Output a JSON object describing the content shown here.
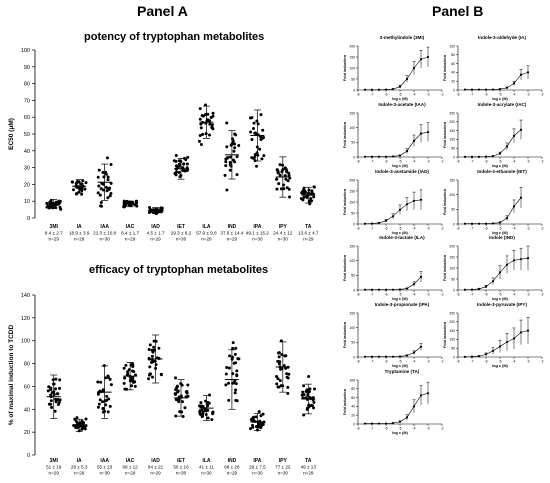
{
  "panels": {
    "a": "Panel A",
    "b": "Panel B"
  },
  "chart_data": [
    {
      "type": "scatter",
      "title": "potency of tryptophan metabolites",
      "xlabel": "",
      "ylabel": "EC50 (μM)",
      "ylim": [
        0,
        100
      ],
      "yticks": [
        "0",
        "10",
        "20",
        "30",
        "40",
        "50",
        "60",
        "70",
        "80",
        "90",
        "100"
      ],
      "categories": [
        "3MI",
        "IA",
        "IAA",
        "IAC",
        "IAD",
        "IET",
        "ILA",
        "IND",
        "IPA",
        "IPY",
        "TA"
      ],
      "means": [
        8.4,
        18.9,
        21.3,
        8.4,
        4.5,
        29.3,
        57.0,
        37.6,
        49.1,
        24.4,
        13.6
      ],
      "sds": [
        2.7,
        3.9,
        10.8,
        1.7,
        1.7,
        6.2,
        9.6,
        14.4,
        15.2,
        12.0,
        4.7
      ],
      "stats": [
        "8.4 ± 2.7",
        "18.9 ± 3.9",
        "21.3 ± 10.8",
        "8.4 ± 1.7",
        "4.5 ± 1.7",
        "29.3 ± 6.2",
        "57.0 ± 9.6",
        "37.6 ± 14.4",
        "49.1 ± 15.2",
        "24.4 ± 12",
        "13.6 ± 4.7"
      ],
      "ns": [
        "n=29",
        "n=29",
        "n=30",
        "n=29",
        "n=29",
        "n=30",
        "n=29",
        "n=29",
        "n=30",
        "n=30",
        "n=29"
      ]
    },
    {
      "type": "scatter",
      "title": "efficacy of tryptophan metabolites",
      "xlabel": "",
      "ylabel": "% of maximal induction to TCDD",
      "ylim": [
        0,
        140
      ],
      "yticks": [
        "0",
        "20",
        "40",
        "60",
        "80",
        "100",
        "120",
        "140"
      ],
      "categories": [
        "3MI",
        "IA",
        "IAA",
        "IAC",
        "IAD",
        "IET",
        "ILA",
        "IND",
        "IPA",
        "IPY",
        "TA"
      ],
      "means": [
        51,
        26,
        55,
        69,
        84,
        50,
        41,
        66,
        29,
        77,
        49
      ],
      "sds": [
        19,
        5.3,
        23,
        12,
        21,
        16,
        11,
        26,
        7.5,
        22,
        13
      ],
      "stats": [
        "51 ± 19",
        "26 ± 5.3",
        "55 ± 23",
        "69 ± 12",
        "84 ± 21",
        "50 ± 16",
        "41 ± 11",
        "66 ± 26",
        "29 ± 7.5",
        "77 ± 22",
        "49 ± 13"
      ],
      "ns": [
        "n=29",
        "n=29",
        "n=30",
        "n=29",
        "n=29",
        "n=30",
        "n=30",
        "n=29",
        "n=30",
        "n=30",
        "n=29"
      ]
    },
    {
      "type": "line",
      "xlabel": "log c (M)",
      "ylabel": "Fold induction",
      "xticks": [
        "-8",
        "-7",
        "-6",
        "-5",
        "-4",
        "-3",
        "-2"
      ],
      "x": [
        -7.5,
        -7,
        -6.5,
        -6,
        -5.5,
        -5,
        -4.5,
        -4,
        -3.5,
        -3
      ],
      "panels": [
        {
          "title": "3-methylindole (3MI)",
          "ylim": [
            0,
            200
          ],
          "yticks": [
            "0",
            "50",
            "100",
            "150",
            "200"
          ],
          "y": [
            1,
            1,
            1,
            2,
            4,
            15,
            50,
            100,
            140,
            150
          ],
          "err": [
            0,
            0,
            0,
            1,
            2,
            6,
            15,
            30,
            40,
            45
          ]
        },
        {
          "title": "Indole-3-aldehyde (IA)",
          "ylim": [
            0,
            100
          ],
          "yticks": [
            "0",
            "20",
            "40",
            "60",
            "80",
            "100"
          ],
          "y": [
            1,
            1,
            1,
            1,
            1,
            2,
            5,
            15,
            35,
            40
          ],
          "err": [
            0,
            0,
            0,
            0,
            0,
            1,
            2,
            5,
            12,
            15
          ]
        },
        {
          "title": "Indole-3-acetate (IAA)",
          "ylim": [
            0,
            150
          ],
          "yticks": [
            "0",
            "50",
            "100",
            "150"
          ],
          "y": [
            1,
            1,
            1,
            1,
            2,
            5,
            20,
            55,
            80,
            85
          ],
          "err": [
            0,
            0,
            0,
            0,
            1,
            2,
            8,
            20,
            30,
            32
          ]
        },
        {
          "title": "Indole-3-acrylate (IAC)",
          "ylim": [
            0,
            250
          ],
          "yticks": [
            "0",
            "50",
            "100",
            "150",
            "200",
            "250"
          ],
          "y": [
            1,
            1,
            1,
            2,
            5,
            20,
            60,
            120,
            155,
            0
          ],
          "err": [
            0,
            0,
            0,
            1,
            2,
            8,
            20,
            40,
            55,
            0
          ]
        },
        {
          "title": "Indole-3-acetamide (IAD)",
          "ylim": [
            0,
            200
          ],
          "yticks": [
            "0",
            "50",
            "100",
            "150",
            "200"
          ],
          "y": [
            1,
            2,
            5,
            15,
            35,
            65,
            90,
            105,
            110,
            0
          ],
          "err": [
            0,
            1,
            2,
            6,
            12,
            22,
            30,
            40,
            45,
            0
          ]
        },
        {
          "title": "Indole-3-ethanole (IET)",
          "ylim": [
            0,
            150
          ],
          "yticks": [
            "0",
            "50",
            "100",
            "150"
          ],
          "y": [
            1,
            1,
            1,
            1,
            2,
            5,
            20,
            60,
            90,
            0
          ],
          "err": [
            0,
            0,
            0,
            0,
            1,
            2,
            8,
            22,
            35,
            0
          ]
        },
        {
          "title": "Indole-3-lactate (ILA)",
          "ylim": [
            0,
            150
          ],
          "yticks": [
            "0",
            "50",
            "100",
            "150"
          ],
          "y": [
            1,
            1,
            1,
            1,
            1,
            2,
            5,
            20,
            45,
            0
          ],
          "err": [
            0,
            0,
            0,
            0,
            0,
            1,
            2,
            8,
            18,
            0
          ]
        },
        {
          "title": "Indole (IND)",
          "ylim": [
            0,
            200
          ],
          "yticks": [
            "0",
            "50",
            "100",
            "150",
            "200"
          ],
          "y": [
            1,
            2,
            5,
            15,
            40,
            80,
            115,
            135,
            140,
            145
          ],
          "err": [
            0,
            1,
            2,
            6,
            15,
            30,
            40,
            45,
            50,
            55
          ]
        },
        {
          "title": "Indole-3-propionate (IPA)",
          "ylim": [
            0,
            150
          ],
          "yticks": [
            "0",
            "50",
            "100",
            "150"
          ],
          "y": [
            1,
            1,
            1,
            1,
            1,
            2,
            5,
            15,
            35,
            0
          ],
          "err": [
            0,
            0,
            0,
            0,
            0,
            1,
            2,
            6,
            12,
            0
          ]
        },
        {
          "title": "Indole-3-pyruvate (IPY)",
          "ylim": [
            0,
            250
          ],
          "yticks": [
            "0",
            "50",
            "100",
            "150",
            "200",
            "250"
          ],
          "y": [
            1,
            2,
            5,
            15,
            35,
            60,
            85,
            105,
            140,
            150
          ],
          "err": [
            0,
            1,
            2,
            8,
            18,
            35,
            50,
            60,
            70,
            75
          ]
        },
        {
          "title": "Tryptamine (TA)",
          "ylim": [
            0,
            100
          ],
          "yticks": [
            "0",
            "20",
            "40",
            "60",
            "80",
            "100"
          ],
          "y": [
            1,
            1,
            1,
            1,
            2,
            5,
            15,
            40,
            65,
            70
          ],
          "err": [
            0,
            0,
            0,
            0,
            1,
            2,
            6,
            15,
            22,
            25
          ]
        }
      ]
    }
  ]
}
